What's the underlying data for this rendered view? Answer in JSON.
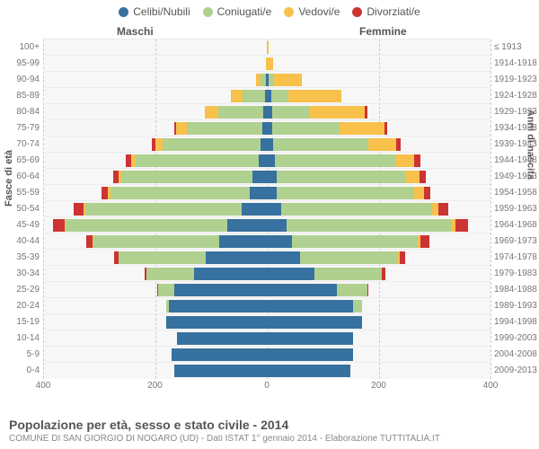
{
  "legend": {
    "items": [
      {
        "label": "Celibi/Nubili",
        "color": "#37719f"
      },
      {
        "label": "Coniugati/e",
        "color": "#b0d090"
      },
      {
        "label": "Vedovi/e",
        "color": "#f7c14b"
      },
      {
        "label": "Divorziati/e",
        "color": "#cc3333"
      }
    ]
  },
  "headers": {
    "male": "Maschi",
    "female": "Femmine"
  },
  "axis": {
    "left_title": "Fasce di età",
    "right_title": "Anni di nascita",
    "xmax": 400,
    "xticks": [
      400,
      200,
      0,
      200,
      400
    ]
  },
  "colors": {
    "celibi": "#37719f",
    "coniugati": "#b0d090",
    "vedovi": "#f7c14b",
    "divorziati": "#cc3333",
    "plot_bg": "#f7f7f7",
    "grid": "#cccccc"
  },
  "rows": [
    {
      "age": "100+",
      "birth": "≤ 1913",
      "m": {
        "c": 0,
        "k": 0,
        "v": 0,
        "d": 0
      },
      "f": {
        "c": 0,
        "k": 0,
        "v": 3,
        "d": 0
      }
    },
    {
      "age": "95-99",
      "birth": "1914-1918",
      "m": {
        "c": 0,
        "k": 0,
        "v": 2,
        "d": 0
      },
      "f": {
        "c": 0,
        "k": 0,
        "v": 12,
        "d": 0
      }
    },
    {
      "age": "90-94",
      "birth": "1919-1923",
      "m": {
        "c": 2,
        "k": 10,
        "v": 8,
        "d": 0
      },
      "f": {
        "c": 4,
        "k": 8,
        "v": 50,
        "d": 0
      }
    },
    {
      "age": "85-89",
      "birth": "1924-1928",
      "m": {
        "c": 4,
        "k": 40,
        "v": 20,
        "d": 0
      },
      "f": {
        "c": 8,
        "k": 30,
        "v": 95,
        "d": 0
      }
    },
    {
      "age": "80-84",
      "birth": "1929-1933",
      "m": {
        "c": 6,
        "k": 80,
        "v": 25,
        "d": 0
      },
      "f": {
        "c": 10,
        "k": 65,
        "v": 100,
        "d": 5
      }
    },
    {
      "age": "75-79",
      "birth": "1934-1938",
      "m": {
        "c": 8,
        "k": 135,
        "v": 20,
        "d": 3
      },
      "f": {
        "c": 10,
        "k": 120,
        "v": 80,
        "d": 5
      }
    },
    {
      "age": "70-74",
      "birth": "1939-1943",
      "m": {
        "c": 12,
        "k": 175,
        "v": 12,
        "d": 6
      },
      "f": {
        "c": 12,
        "k": 170,
        "v": 50,
        "d": 8
      }
    },
    {
      "age": "65-69",
      "birth": "1944-1948",
      "m": {
        "c": 15,
        "k": 220,
        "v": 8,
        "d": 10
      },
      "f": {
        "c": 14,
        "k": 215,
        "v": 35,
        "d": 10
      }
    },
    {
      "age": "60-64",
      "birth": "1949-1953",
      "m": {
        "c": 25,
        "k": 235,
        "v": 5,
        "d": 10
      },
      "f": {
        "c": 18,
        "k": 230,
        "v": 25,
        "d": 12
      }
    },
    {
      "age": "55-59",
      "birth": "1954-1958",
      "m": {
        "c": 30,
        "k": 250,
        "v": 4,
        "d": 12
      },
      "f": {
        "c": 18,
        "k": 245,
        "v": 18,
        "d": 12
      }
    },
    {
      "age": "50-54",
      "birth": "1959-1963",
      "m": {
        "c": 45,
        "k": 280,
        "v": 3,
        "d": 18
      },
      "f": {
        "c": 25,
        "k": 270,
        "v": 12,
        "d": 18
      }
    },
    {
      "age": "45-49",
      "birth": "1964-1968",
      "m": {
        "c": 70,
        "k": 290,
        "v": 2,
        "d": 20
      },
      "f": {
        "c": 35,
        "k": 295,
        "v": 8,
        "d": 22
      }
    },
    {
      "age": "40-44",
      "birth": "1969-1973",
      "m": {
        "c": 85,
        "k": 225,
        "v": 1,
        "d": 12
      },
      "f": {
        "c": 45,
        "k": 225,
        "v": 5,
        "d": 15
      }
    },
    {
      "age": "35-39",
      "birth": "1974-1978",
      "m": {
        "c": 110,
        "k": 155,
        "v": 0,
        "d": 8
      },
      "f": {
        "c": 60,
        "k": 175,
        "v": 2,
        "d": 10
      }
    },
    {
      "age": "30-34",
      "birth": "1979-1983",
      "m": {
        "c": 130,
        "k": 85,
        "v": 0,
        "d": 4
      },
      "f": {
        "c": 85,
        "k": 120,
        "v": 1,
        "d": 6
      }
    },
    {
      "age": "25-29",
      "birth": "1984-1988",
      "m": {
        "c": 165,
        "k": 30,
        "v": 0,
        "d": 1
      },
      "f": {
        "c": 125,
        "k": 55,
        "v": 0,
        "d": 2
      }
    },
    {
      "age": "20-24",
      "birth": "1989-1993",
      "m": {
        "c": 175,
        "k": 5,
        "v": 0,
        "d": 0
      },
      "f": {
        "c": 155,
        "k": 15,
        "v": 0,
        "d": 0
      }
    },
    {
      "age": "15-19",
      "birth": "1994-1998",
      "m": {
        "c": 180,
        "k": 0,
        "v": 0,
        "d": 0
      },
      "f": {
        "c": 170,
        "k": 0,
        "v": 0,
        "d": 0
      }
    },
    {
      "age": "10-14",
      "birth": "1999-2003",
      "m": {
        "c": 160,
        "k": 0,
        "v": 0,
        "d": 0
      },
      "f": {
        "c": 155,
        "k": 0,
        "v": 0,
        "d": 0
      }
    },
    {
      "age": "5-9",
      "birth": "2004-2008",
      "m": {
        "c": 170,
        "k": 0,
        "v": 0,
        "d": 0
      },
      "f": {
        "c": 155,
        "k": 0,
        "v": 0,
        "d": 0
      }
    },
    {
      "age": "0-4",
      "birth": "2009-2013",
      "m": {
        "c": 165,
        "k": 0,
        "v": 0,
        "d": 0
      },
      "f": {
        "c": 150,
        "k": 0,
        "v": 0,
        "d": 0
      }
    }
  ],
  "footer": {
    "title": "Popolazione per età, sesso e stato civile - 2014",
    "subtitle": "COMUNE DI SAN GIORGIO DI NOGARO (UD) - Dati ISTAT 1° gennaio 2014 - Elaborazione TUTTITALIA.IT"
  }
}
